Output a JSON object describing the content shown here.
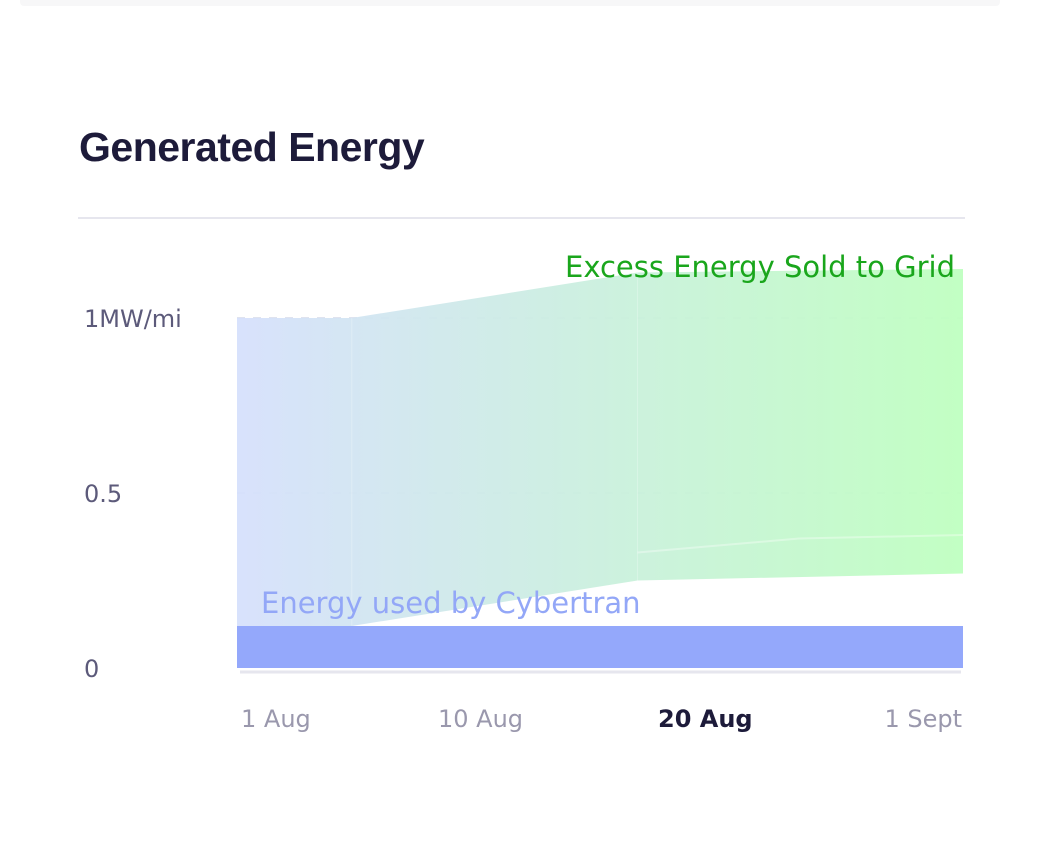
{
  "card": {
    "title": "Generated Energy"
  },
  "chart_data": {
    "type": "area",
    "title": "Generated Energy",
    "xlabel": "",
    "ylabel": "",
    "x_ticks": [
      "1 Aug",
      "10 Aug",
      "20 Aug",
      "1 Sept"
    ],
    "active_x_tick": "20 Aug",
    "y_ticks": [
      {
        "value": 0,
        "label": "0"
      },
      {
        "value": 0.5,
        "label": "0.5"
      },
      {
        "value": 1,
        "label": "1MW/mi"
      }
    ],
    "ylim": [
      0,
      1.15
    ],
    "x_domain_days": [
      0,
      31
    ],
    "grid": "horizontal-dashed",
    "series": [
      {
        "name": "Energy used by Cybertran",
        "color": "#94a8fb",
        "label_color": "#93a7f7",
        "x": [
          0,
          31
        ],
        "lower": [
          0,
          0
        ],
        "upper": [
          0.12,
          0.12
        ]
      },
      {
        "name": "Excess Energy Sold to Grid",
        "color_start": "#d6e0fc",
        "color_end": "#bfffc0",
        "label_color": "#1aa61c",
        "x": [
          0,
          4.9,
          17.1,
          31
        ],
        "lower": [
          0.12,
          0.12,
          0.25,
          0.27
        ],
        "upper": [
          1.0,
          1.0,
          1.13,
          1.14
        ]
      }
    ],
    "inner_line": {
      "x": [
        17.1,
        24,
        31
      ],
      "y": [
        0.33,
        0.37,
        0.38
      ]
    }
  }
}
